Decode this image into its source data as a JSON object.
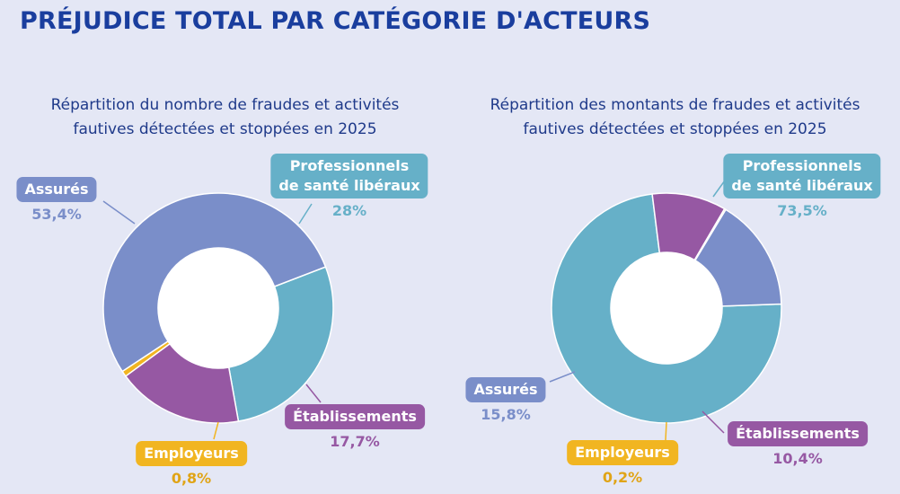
{
  "title": "PRÉJUDICE TOTAL PAR CATÉGORIE D'ACTEURS",
  "colors": {
    "Assurés": "#7a8ec9",
    "Professionnels de santé libéraux": "#66b0c8",
    "Établissements": "#9658a3",
    "Employeurs": "#f1b521"
  },
  "chart_data": [
    {
      "type": "pie",
      "title_line1": "Répartition du nombre de fraudes et activités",
      "title_line2": "fautives détectées et stoppées en 2025",
      "slices": [
        {
          "label": "Assurés",
          "value": 53.4,
          "display": "53,4%"
        },
        {
          "label": "Professionnels de santé libéraux",
          "label_line1": "Professionnels",
          "label_line2": "de santé libéraux",
          "value": 28.0,
          "display": "28%"
        },
        {
          "label": "Établissements",
          "value": 17.7,
          "display": "17,7%"
        },
        {
          "label": "Employeurs",
          "value": 0.8,
          "display": "0,8%"
        }
      ]
    },
    {
      "type": "pie",
      "title_line1": "Répartition des montants de fraudes et activités",
      "title_line2": "fautives détectées et stoppées en 2025",
      "slices": [
        {
          "label": "Professionnels de santé libéraux",
          "label_line1": "Professionnels",
          "label_line2": "de santé libéraux",
          "value": 73.5,
          "display": "73,5%"
        },
        {
          "label": "Assurés",
          "value": 15.8,
          "display": "15,8%"
        },
        {
          "label": "Établissements",
          "value": 10.4,
          "display": "10,4%"
        },
        {
          "label": "Employeurs",
          "value": 0.2,
          "display": "0,2%"
        }
      ]
    }
  ]
}
